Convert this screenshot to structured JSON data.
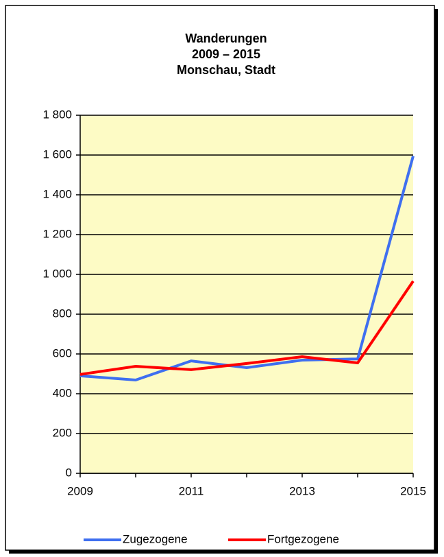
{
  "chart_data": {
    "type": "line",
    "title_lines": [
      "Wanderungen",
      "2009 – 2015",
      "Monschau, Stadt"
    ],
    "x": [
      2009,
      2010,
      2011,
      2012,
      2013,
      2014,
      2015
    ],
    "xlim": [
      2009,
      2015
    ],
    "xticks": [
      2009,
      2011,
      2013,
      2015
    ],
    "ylim": [
      0,
      1800
    ],
    "yticks": [
      0,
      200,
      400,
      600,
      800,
      {
        "value": 1000,
        "label": "1 000"
      },
      {
        "value": 1200,
        "label": "1 200"
      },
      {
        "value": 1400,
        "label": "1 400"
      },
      {
        "value": 1600,
        "label": "1 600"
      },
      {
        "value": 1800,
        "label": "1 800"
      }
    ],
    "grid": true,
    "legend": "bottom",
    "series": [
      {
        "name": "Zugezogene",
        "color": "#3f6ff0",
        "values": [
          490,
          469,
          565,
          531,
          569,
          575,
          1595
        ]
      },
      {
        "name": "Fortgezogene",
        "color": "#ff0000",
        "values": [
          497,
          538,
          521,
          552,
          586,
          555,
          966
        ]
      }
    ]
  }
}
